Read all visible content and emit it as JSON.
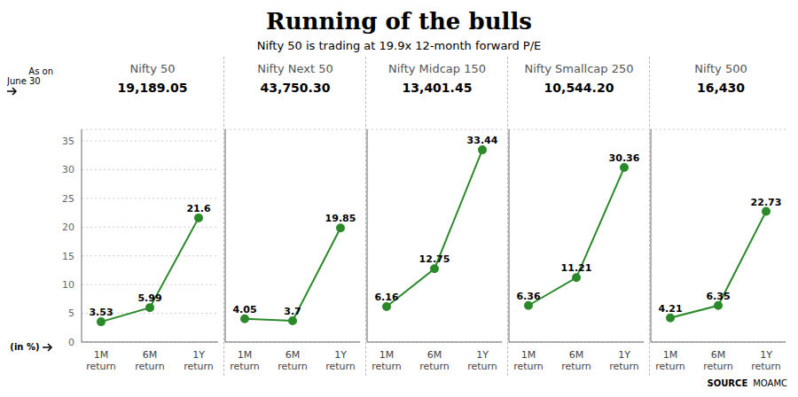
{
  "title": "Running of the bulls",
  "subtitle": "Nifty 50 is trading at 19.9x 12-month forward P/E",
  "annotations": [
    "As on",
    "June 30",
    "SOURCE",
    "MOAMC"
  ],
  "chart_data": [
    {
      "type": "line",
      "title": "Nifty 50",
      "subtitle": "19,189.05",
      "ylabel": "(in %)",
      "categories": [
        "1M\nreturn",
        "6M\nreturn",
        "1Y\nreturn"
      ],
      "values": [
        3.53,
        5.99,
        21.6
      ],
      "color": "#2a8a2a",
      "ylim": [
        0,
        37
      ],
      "yticks": [
        0,
        5,
        10,
        15,
        20,
        25,
        30,
        35
      ],
      "grid": true,
      "data_labels": true
    },
    {
      "type": "line",
      "title": "Nifty Next 50",
      "subtitle": "43,750.30",
      "categories": [
        "1M\nreturn",
        "6M\nreturn",
        "1Y\nreturn"
      ],
      "values": [
        4.05,
        3.7,
        19.85
      ],
      "color": "#2a8a2a",
      "ylim": [
        0,
        37
      ],
      "yticks": [
        0,
        5,
        10,
        15,
        20,
        25,
        30,
        35
      ],
      "grid": true,
      "data_labels": true,
      "tick_labels": "x"
    },
    {
      "type": "line",
      "title": "Nifty Midcap 150",
      "subtitle": "13,401.45",
      "categories": [
        "1M\nreturn",
        "6M\nreturn",
        "1Y\nreturn"
      ],
      "values": [
        6.16,
        12.75,
        33.44
      ],
      "color": "#2a8a2a",
      "ylim": [
        0,
        37
      ],
      "yticks": [
        0,
        5,
        10,
        15,
        20,
        25,
        30,
        35
      ],
      "grid": true,
      "data_labels": true,
      "tick_labels": "x"
    },
    {
      "type": "line",
      "title": "Nifty Smallcap 250",
      "subtitle": "10,544.20",
      "categories": [
        "1M\nreturn",
        "6M\nreturn",
        "1Y\nreturn"
      ],
      "values": [
        6.36,
        11.21,
        30.36
      ],
      "color": "#2a8a2a",
      "ylim": [
        0,
        37
      ],
      "yticks": [
        0,
        5,
        10,
        15,
        20,
        25,
        30,
        35
      ],
      "grid": true,
      "data_labels": true,
      "tick_labels": "x"
    },
    {
      "type": "line",
      "title": "Nifty 500",
      "subtitle": "16,430",
      "categories": [
        "1M\nreturn",
        "6M\nreturn",
        "1Y\nreturn"
      ],
      "values": [
        4.21,
        6.35,
        22.73
      ],
      "color": "#2a8a2a",
      "ylim": [
        0,
        37
      ],
      "yticks": [
        0,
        5,
        10,
        15,
        20,
        25,
        30,
        35
      ],
      "grid": true,
      "data_labels": true,
      "tick_labels": "x"
    }
  ]
}
